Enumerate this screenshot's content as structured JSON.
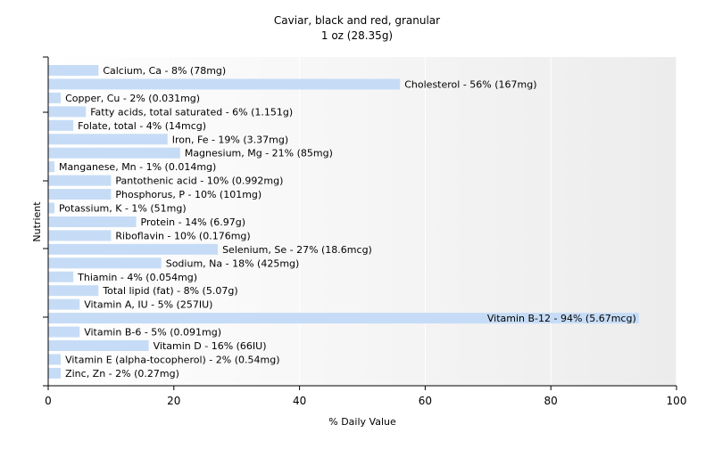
{
  "chart_data": {
    "type": "bar",
    "orientation": "horizontal",
    "title": "Caviar, black and red, granular",
    "subtitle": "1 oz (28.35g)",
    "xlabel": "% Daily Value",
    "ylabel": "Nutrient",
    "xlim": [
      0,
      100
    ],
    "xticks": [
      "0",
      "20",
      "40",
      "60",
      "80",
      "100"
    ],
    "grid": true,
    "bar_color": "#c6dcf6",
    "categories": [
      "Calcium, Ca",
      "Cholesterol",
      "Copper, Cu",
      "Fatty acids, total saturated",
      "Folate, total",
      "Iron, Fe",
      "Magnesium, Mg",
      "Manganese, Mn",
      "Pantothenic acid",
      "Phosphorus, P",
      "Potassium, K",
      "Protein",
      "Riboflavin",
      "Selenium, Se",
      "Sodium, Na",
      "Thiamin",
      "Total lipid (fat)",
      "Vitamin A, IU",
      "Vitamin B-12",
      "Vitamin B-6",
      "Vitamin D",
      "Vitamin E (alpha-tocopherol)",
      "Zinc, Zn"
    ],
    "values": [
      8,
      56,
      2,
      6,
      4,
      19,
      21,
      1,
      10,
      10,
      1,
      14,
      10,
      27,
      18,
      4,
      8,
      5,
      94,
      5,
      16,
      2,
      2
    ],
    "labels": [
      "Calcium, Ca - 8% (78mg)",
      "Cholesterol - 56% (167mg)",
      "Copper, Cu - 2% (0.031mg)",
      "Fatty acids, total saturated - 6% (1.151g)",
      "Folate, total - 4% (14mcg)",
      "Iron, Fe - 19% (3.37mg)",
      "Magnesium, Mg - 21% (85mg)",
      "Manganese, Mn - 1% (0.014mg)",
      "Pantothenic acid - 10% (0.992mg)",
      "Phosphorus, P - 10% (101mg)",
      "Potassium, K - 1% (51mg)",
      "Protein - 14% (6.97g)",
      "Riboflavin - 10% (0.176mg)",
      "Selenium, Se - 27% (18.6mcg)",
      "Sodium, Na - 18% (425mg)",
      "Thiamin - 4% (0.054mg)",
      "Total lipid (fat) - 8% (5.07g)",
      "Vitamin A, IU - 5% (257IU)",
      "Vitamin B-12 - 94% (5.67mcg)",
      "Vitamin B-6 - 5% (0.091mg)",
      "Vitamin D - 16% (66IU)",
      "Vitamin E (alpha-tocopherol) - 2% (0.54mg)",
      "Zinc, Zn - 2% (0.27mg)"
    ]
  }
}
